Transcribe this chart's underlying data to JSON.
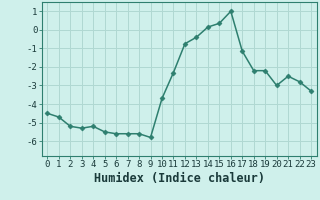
{
  "x": [
    0,
    1,
    2,
    3,
    4,
    5,
    6,
    7,
    8,
    9,
    10,
    11,
    12,
    13,
    14,
    15,
    16,
    17,
    18,
    19,
    20,
    21,
    22,
    23
  ],
  "y": [
    -4.5,
    -4.7,
    -5.2,
    -5.3,
    -5.2,
    -5.5,
    -5.6,
    -5.6,
    -5.6,
    -5.8,
    -3.7,
    -2.3,
    -0.75,
    -0.4,
    0.15,
    0.35,
    1.0,
    -1.15,
    -2.2,
    -2.2,
    -3.0,
    -2.5,
    -2.8,
    -3.3
  ],
  "line_color": "#2e7f6f",
  "marker": "D",
  "marker_size": 2.5,
  "bg_color": "#cff0eb",
  "grid_color": "#b0d8d2",
  "xlabel": "Humidex (Indice chaleur)",
  "xlim": [
    -0.5,
    23.5
  ],
  "ylim": [
    -6.8,
    1.5
  ],
  "yticks": [
    1,
    0,
    -1,
    -2,
    -3,
    -4,
    -5,
    -6
  ],
  "xtick_labels": [
    "0",
    "1",
    "2",
    "3",
    "4",
    "5",
    "6",
    "7",
    "8",
    "9",
    "10",
    "11",
    "12",
    "13",
    "14",
    "15",
    "16",
    "17",
    "18",
    "19",
    "20",
    "21",
    "22",
    "23"
  ],
  "tick_fontsize": 6.5,
  "xlabel_fontsize": 8.5,
  "line_width": 1.1
}
